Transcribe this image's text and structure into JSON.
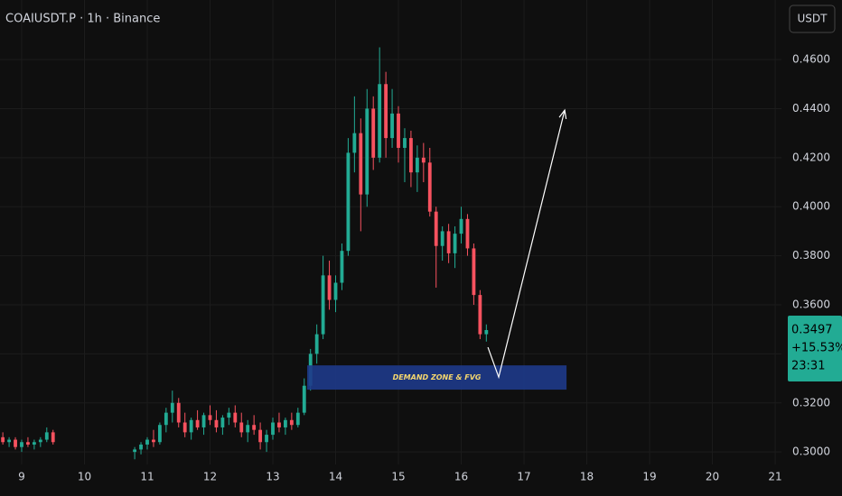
{
  "chart_data": {
    "type": "candlestick",
    "title": "COAIUSDT.P · 1h · Binance",
    "currency": "USDT",
    "up_color": "#22ab94",
    "down_color": "#f7525f",
    "xlim": [
      8.655,
      21.1
    ],
    "ylim": [
      0.2949,
      0.4843
    ],
    "xticks": [
      9,
      10,
      11,
      12,
      13,
      14,
      15,
      16,
      17,
      18,
      19,
      20,
      21
    ],
    "yticks": [
      {
        "value": 0.3,
        "label": "0.3000"
      },
      {
        "value": 0.32,
        "label": "0.3200"
      },
      {
        "value": 0.34,
        "label": "0.3400"
      },
      {
        "value": 0.36,
        "label": "0.3600"
      },
      {
        "value": 0.38,
        "label": "0.3800"
      },
      {
        "value": 0.4,
        "label": "0.4000"
      },
      {
        "value": 0.42,
        "label": "0.4200"
      },
      {
        "value": 0.44,
        "label": "0.4400"
      },
      {
        "value": 0.46,
        "label": "0.4600"
      }
    ],
    "x": [
      8.7,
      8.8,
      8.9,
      9.0,
      9.1,
      9.2,
      9.3,
      9.4,
      9.5,
      10.8,
      10.9,
      11.0,
      11.1,
      11.2,
      11.3,
      11.4,
      11.5,
      11.6,
      11.7,
      11.8,
      11.9,
      12.0,
      12.1,
      12.2,
      12.3,
      12.4,
      12.5,
      12.6,
      12.7,
      12.8,
      12.9,
      13.0,
      13.1,
      13.2,
      13.3,
      13.4,
      13.5,
      13.6,
      13.7,
      13.8,
      13.9,
      14.0,
      14.1,
      14.2,
      14.3,
      14.4,
      14.5,
      14.6,
      14.7,
      14.8,
      14.9,
      15.0,
      15.1,
      15.2,
      15.3,
      15.4,
      15.5,
      15.6,
      15.7,
      15.8,
      15.9,
      16.0,
      16.1,
      16.2,
      16.3,
      16.4
    ],
    "open": [
      0.306,
      0.304,
      0.305,
      0.302,
      0.304,
      0.303,
      0.304,
      0.305,
      0.308,
      0.3,
      0.301,
      0.303,
      0.305,
      0.304,
      0.311,
      0.316,
      0.32,
      0.312,
      0.308,
      0.313,
      0.31,
      0.315,
      0.313,
      0.31,
      0.314,
      0.316,
      0.312,
      0.308,
      0.311,
      0.309,
      0.304,
      0.307,
      0.312,
      0.31,
      0.313,
      0.311,
      0.316,
      0.327,
      0.34,
      0.348,
      0.372,
      0.362,
      0.369,
      0.382,
      0.422,
      0.43,
      0.405,
      0.44,
      0.42,
      0.45,
      0.428,
      0.438,
      0.424,
      0.428,
      0.414,
      0.42,
      0.418,
      0.398,
      0.384,
      0.39,
      0.381,
      0.389,
      0.395,
      0.383,
      0.364,
      0.348
    ],
    "high": [
      0.308,
      0.306,
      0.306,
      0.305,
      0.306,
      0.305,
      0.306,
      0.31,
      0.309,
      0.302,
      0.304,
      0.306,
      0.309,
      0.312,
      0.318,
      0.325,
      0.322,
      0.316,
      0.314,
      0.317,
      0.316,
      0.319,
      0.317,
      0.315,
      0.318,
      0.319,
      0.316,
      0.313,
      0.315,
      0.312,
      0.309,
      0.314,
      0.316,
      0.314,
      0.316,
      0.318,
      0.33,
      0.342,
      0.352,
      0.38,
      0.378,
      0.372,
      0.385,
      0.428,
      0.445,
      0.436,
      0.448,
      0.445,
      0.465,
      0.455,
      0.448,
      0.441,
      0.432,
      0.431,
      0.425,
      0.426,
      0.424,
      0.4,
      0.392,
      0.393,
      0.392,
      0.4,
      0.397,
      0.385,
      0.366,
      0.352
    ],
    "low": [
      0.303,
      0.302,
      0.301,
      0.3,
      0.302,
      0.301,
      0.302,
      0.304,
      0.303,
      0.297,
      0.299,
      0.301,
      0.302,
      0.303,
      0.308,
      0.312,
      0.31,
      0.306,
      0.305,
      0.309,
      0.307,
      0.311,
      0.308,
      0.307,
      0.311,
      0.31,
      0.306,
      0.304,
      0.307,
      0.301,
      0.3,
      0.305,
      0.308,
      0.307,
      0.309,
      0.31,
      0.315,
      0.325,
      0.336,
      0.346,
      0.358,
      0.357,
      0.366,
      0.38,
      0.414,
      0.39,
      0.4,
      0.415,
      0.418,
      0.42,
      0.424,
      0.418,
      0.41,
      0.408,
      0.406,
      0.41,
      0.396,
      0.367,
      0.378,
      0.377,
      0.375,
      0.385,
      0.38,
      0.36,
      0.346,
      0.345
    ],
    "close": [
      0.304,
      0.305,
      0.302,
      0.304,
      0.303,
      0.304,
      0.305,
      0.308,
      0.304,
      0.301,
      0.303,
      0.305,
      0.304,
      0.311,
      0.316,
      0.32,
      0.312,
      0.308,
      0.313,
      0.31,
      0.315,
      0.313,
      0.31,
      0.314,
      0.316,
      0.312,
      0.308,
      0.311,
      0.309,
      0.304,
      0.307,
      0.312,
      0.31,
      0.313,
      0.311,
      0.316,
      0.327,
      0.34,
      0.348,
      0.372,
      0.362,
      0.369,
      0.382,
      0.422,
      0.43,
      0.405,
      0.44,
      0.42,
      0.45,
      0.428,
      0.438,
      0.424,
      0.428,
      0.414,
      0.42,
      0.418,
      0.398,
      0.384,
      0.39,
      0.381,
      0.389,
      0.395,
      0.383,
      0.364,
      0.348,
      0.3497
    ],
    "last_price": 0.3497,
    "change_label": "+15.53%",
    "countdown": "23:31",
    "zone": {
      "label": "DEMAND ZONE & FVG",
      "from": 13.547,
      "to": 17.677,
      "top": 0.3353,
      "bottom": 0.3254,
      "color": "#1e3a8a"
    },
    "arrow": {
      "x": [
        16.425,
        16.597,
        17.648
      ],
      "y": [
        0.3427,
        0.3305,
        0.4394
      ],
      "color": "#ffffff"
    }
  }
}
